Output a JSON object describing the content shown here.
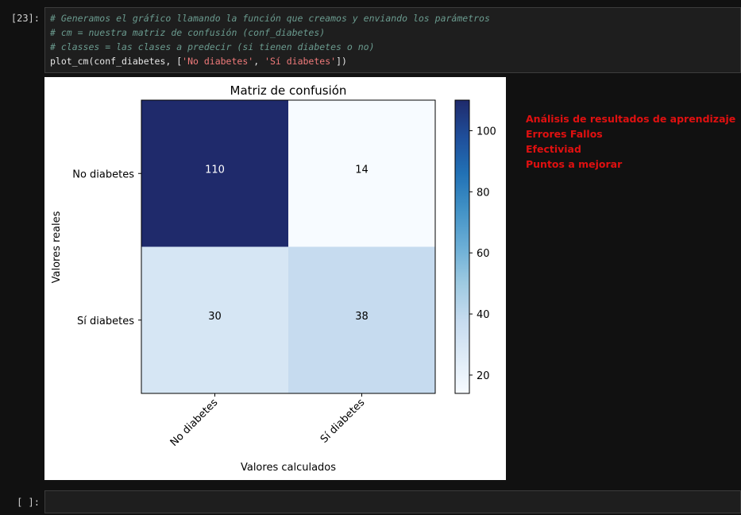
{
  "cell23": {
    "prompt": "[23]:",
    "comment1": "# Generamos el gráfico llamando la función que creamos y enviando los parámetros",
    "comment2": "# cm = nuestra matriz de confusión (conf_diabetes)",
    "comment3": "# classes = las clases a predecir (si tienen diabetes o no)",
    "code_func": "plot_cm(conf_diabetes, [",
    "code_str1": "'No diabetes'",
    "code_sep": ", ",
    "code_str2": "'Sí diabetes'",
    "code_end": "])"
  },
  "empty_cell": {
    "prompt": "[ ]:"
  },
  "notes": [
    "Análisis de resultados de aprendizaje",
    "Errores Fallos",
    "Efectiviad",
    "Puntos a mejorar"
  ],
  "colors": {
    "cm_dark": "#1f2a6b",
    "cm_light": "#f7fbff",
    "note_red": "#e01010"
  },
  "chart_data": {
    "type": "heatmap",
    "title": "Matriz de confusión",
    "xlabel": "Valores calculados",
    "ylabel": "Valores reales",
    "x_categories": [
      "No diabetes",
      "Sí diabetes"
    ],
    "y_categories": [
      "No diabetes",
      "Sí diabetes"
    ],
    "values": [
      [
        110,
        14
      ],
      [
        30,
        38
      ]
    ],
    "colorbar": {
      "min": 14,
      "max": 110,
      "ticks": [
        20,
        40,
        60,
        80,
        100
      ]
    },
    "colormap": "Blues"
  }
}
